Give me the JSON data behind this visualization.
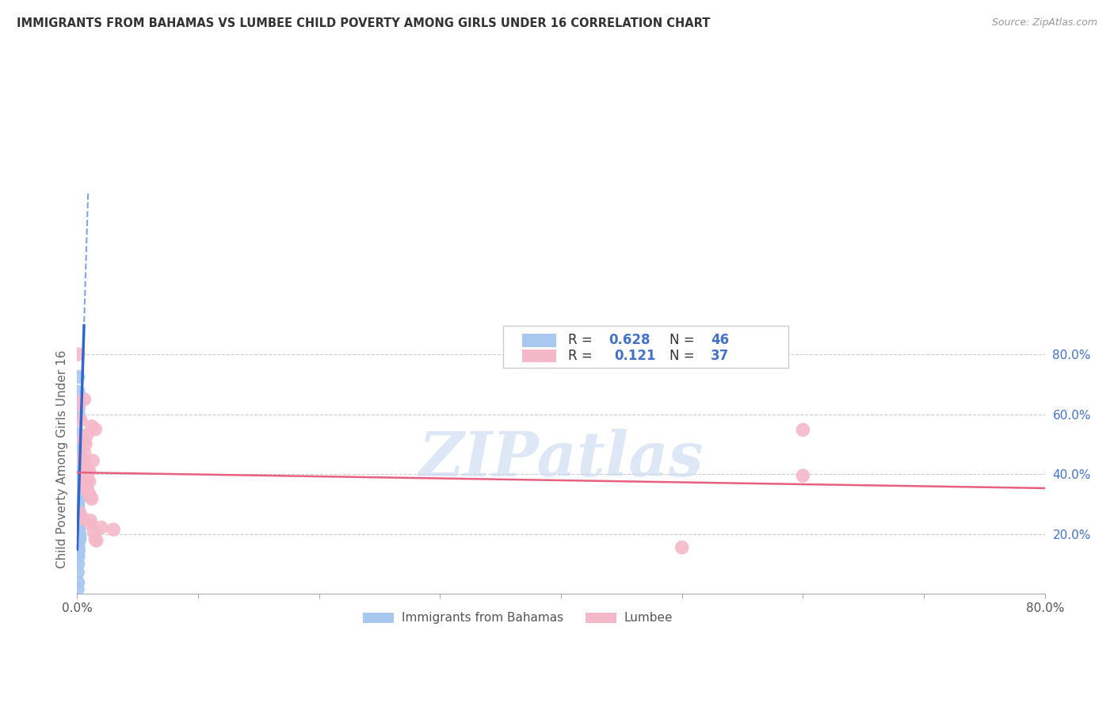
{
  "title": "IMMIGRANTS FROM BAHAMAS VS LUMBEE CHILD POVERTY AMONG GIRLS UNDER 16 CORRELATION CHART",
  "source": "Source: ZipAtlas.com",
  "ylabel": "Child Poverty Among Girls Under 16",
  "r_blue": 0.628,
  "n_blue": 46,
  "r_pink": 0.121,
  "n_pink": 37,
  "legend_labels": [
    "Immigrants from Bahamas",
    "Lumbee"
  ],
  "blue_color": "#a8c8f0",
  "pink_color": "#f5b8c8",
  "blue_line_color": "#3366cc",
  "pink_line_color": "#e86080",
  "blue_scatter": [
    [
      0.0008,
      0.725
    ],
    [
      0.001,
      0.675
    ],
    [
      0.0012,
      0.62
    ],
    [
      0.0015,
      0.595
    ],
    [
      0.0018,
      0.535
    ],
    [
      0.002,
      0.505
    ],
    [
      0.0022,
      0.492
    ],
    [
      0.0018,
      0.462
    ],
    [
      0.001,
      0.415
    ],
    [
      0.0008,
      0.39
    ],
    [
      0.0008,
      0.375
    ],
    [
      0.0012,
      0.355
    ],
    [
      0.001,
      0.345
    ],
    [
      0.0012,
      0.335
    ],
    [
      0.0008,
      0.325
    ],
    [
      0.001,
      0.315
    ],
    [
      0.0008,
      0.308
    ],
    [
      0.0006,
      0.298
    ],
    [
      0.0008,
      0.288
    ],
    [
      0.001,
      0.278
    ],
    [
      0.0008,
      0.27
    ],
    [
      0.0006,
      0.262
    ],
    [
      0.001,
      0.252
    ],
    [
      0.0008,
      0.242
    ],
    [
      0.0006,
      0.232
    ],
    [
      0.0008,
      0.222
    ],
    [
      0.001,
      0.212
    ],
    [
      0.0006,
      0.202
    ],
    [
      0.0008,
      0.195
    ],
    [
      0.001,
      0.188
    ],
    [
      0.0006,
      0.18
    ],
    [
      0.0012,
      0.172
    ],
    [
      0.0008,
      0.165
    ],
    [
      0.0006,
      0.158
    ],
    [
      0.001,
      0.152
    ],
    [
      0.0012,
      0.145
    ],
    [
      0.0008,
      0.138
    ],
    [
      0.0006,
      0.13
    ],
    [
      0.001,
      0.125
    ],
    [
      0.0018,
      0.205
    ],
    [
      0.002,
      0.195
    ],
    [
      0.0022,
      0.185
    ],
    [
      0.0008,
      0.1
    ],
    [
      0.0006,
      0.072
    ],
    [
      0.0008,
      0.038
    ],
    [
      0.0004,
      0.015
    ]
  ],
  "pink_scatter": [
    [
      0.0008,
      0.8
    ],
    [
      0.006,
      0.65
    ],
    [
      0.002,
      0.64
    ],
    [
      0.001,
      0.63
    ],
    [
      0.003,
      0.58
    ],
    [
      0.012,
      0.56
    ],
    [
      0.015,
      0.55
    ],
    [
      0.008,
      0.53
    ],
    [
      0.005,
      0.515
    ],
    [
      0.007,
      0.5
    ],
    [
      0.006,
      0.47
    ],
    [
      0.004,
      0.45
    ],
    [
      0.013,
      0.445
    ],
    [
      0.006,
      0.435
    ],
    [
      0.007,
      0.42
    ],
    [
      0.01,
      0.41
    ],
    [
      0.007,
      0.395
    ],
    [
      0.008,
      0.385
    ],
    [
      0.01,
      0.375
    ],
    [
      0.008,
      0.365
    ],
    [
      0.006,
      0.352
    ],
    [
      0.009,
      0.342
    ],
    [
      0.01,
      0.332
    ],
    [
      0.011,
      0.325
    ],
    [
      0.012,
      0.318
    ],
    [
      0.002,
      0.272
    ],
    [
      0.005,
      0.252
    ],
    [
      0.011,
      0.245
    ],
    [
      0.011,
      0.232
    ],
    [
      0.02,
      0.222
    ],
    [
      0.014,
      0.205
    ],
    [
      0.015,
      0.182
    ],
    [
      0.016,
      0.178
    ],
    [
      0.03,
      0.215
    ],
    [
      0.5,
      0.155
    ],
    [
      0.6,
      0.395
    ],
    [
      0.6,
      0.548
    ]
  ],
  "xlim": [
    0,
    0.8
  ],
  "ylim": [
    0,
    0.9
  ],
  "yticks_right": [
    0.2,
    0.4,
    0.6,
    0.8
  ],
  "ytick_labels_right": [
    "20.0%",
    "40.0%",
    "60.0%",
    "80.0%"
  ],
  "xticks": [
    0.0,
    0.1,
    0.2,
    0.3,
    0.4,
    0.5,
    0.6,
    0.7,
    0.8
  ],
  "xtick_labels": [
    "0.0%",
    "",
    "",
    "",
    "",
    "",
    "",
    "",
    "80.0%"
  ],
  "watermark": "ZIPatlas",
  "watermark_color": "#c8d8f0",
  "blue_trend_slope": 180.0,
  "blue_trend_intercept": 0.385,
  "pink_trend_slope": 0.18,
  "pink_trend_intercept": 0.39
}
